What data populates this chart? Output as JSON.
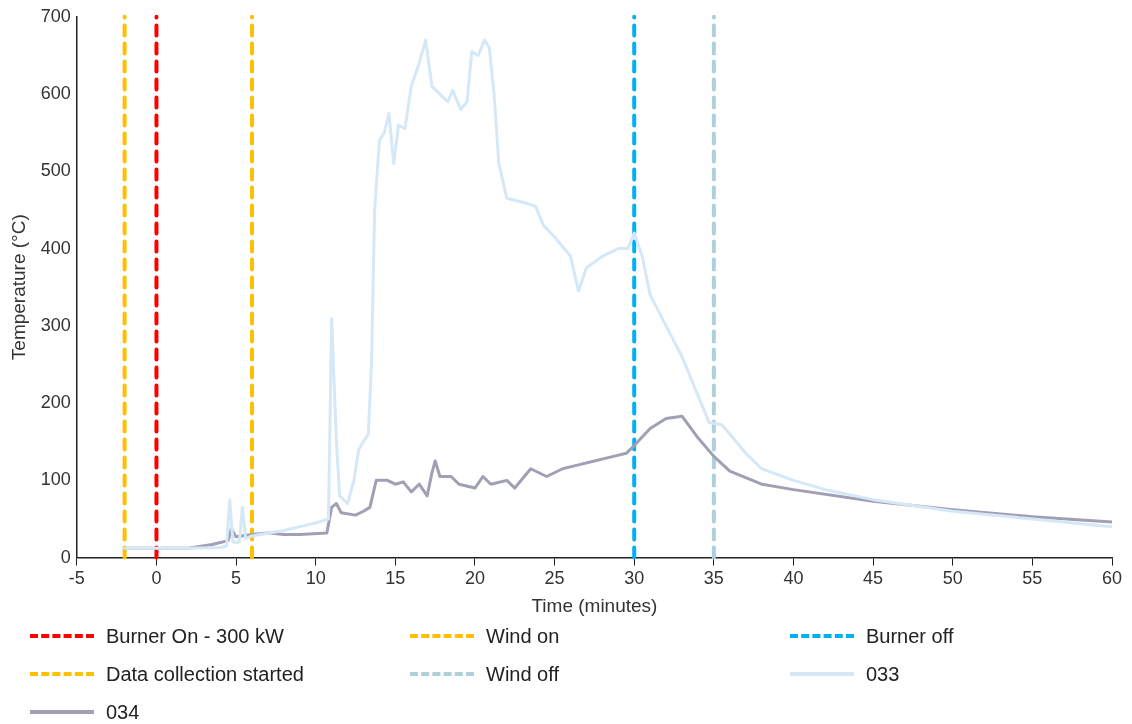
{
  "chart_data": {
    "type": "line",
    "xlabel": "Time (minutes)",
    "ylabel": "Temperature (°C)",
    "xlim": [
      -5,
      60
    ],
    "xticks": [
      -5,
      0,
      5,
      10,
      15,
      20,
      25,
      30,
      35,
      40,
      45,
      50,
      55,
      60
    ],
    "ylim": [
      0,
      700
    ],
    "yticks": [
      0,
      100,
      200,
      300,
      400,
      500,
      600,
      700
    ],
    "grid": false,
    "legend": "bottom",
    "marker": "none",
    "series": [
      {
        "name": "033",
        "color": "#d5e8f7",
        "x": [
          -2,
          0,
          2,
          4,
          4.4,
          4.6,
          4.8,
          5.2,
          5.4,
          5.6,
          6,
          8,
          10,
          10.8,
          11,
          11.3,
          11.5,
          12,
          12.4,
          12.7,
          13,
          13.3,
          13.5,
          13.7,
          14,
          14.3,
          14.6,
          14.9,
          15.2,
          15.6,
          16,
          16.5,
          16.9,
          17.3,
          17.8,
          18.3,
          18.6,
          19.1,
          19.5,
          19.8,
          20.2,
          20.6,
          20.9,
          21.2,
          21.5,
          22,
          23,
          23.8,
          24.3,
          25,
          26,
          26.5,
          27,
          28,
          29,
          29.6,
          30,
          30.5,
          31,
          32,
          33,
          34,
          34.7,
          35.5,
          36,
          37,
          38,
          40,
          42,
          45,
          50,
          55,
          60
        ],
        "values": [
          12,
          12,
          12,
          13,
          15,
          75,
          20,
          20,
          65,
          25,
          28,
          35,
          45,
          50,
          309,
          150,
          80,
          70,
          100,
          140,
          150,
          160,
          250,
          450,
          540,
          550,
          575,
          510,
          560,
          555,
          610,
          640,
          670,
          610,
          600,
          590,
          605,
          580,
          590,
          655,
          650,
          670,
          660,
          600,
          510,
          465,
          460,
          455,
          430,
          415,
          390,
          345,
          375,
          390,
          400,
          400,
          420,
          390,
          340,
          300,
          260,
          210,
          175,
          172,
          160,
          135,
          115,
          100,
          88,
          75,
          60,
          50,
          40
        ]
      },
      {
        "name": "034",
        "color": "#a0a0b4",
        "x": [
          -2,
          0,
          2,
          3.5,
          4.5,
          4.7,
          5,
          6,
          7,
          8,
          9,
          10.7,
          11,
          11.3,
          11.6,
          12.5,
          13,
          13.4,
          13.8,
          14.5,
          15,
          15.5,
          16,
          16.5,
          17,
          17.3,
          17.5,
          17.8,
          18.5,
          19,
          20,
          20.5,
          21,
          22,
          22.5,
          23.5,
          24.5,
          25.5,
          26.5,
          27.5,
          28.5,
          29.5,
          30,
          31,
          32,
          33,
          34,
          35,
          36,
          38,
          40,
          45,
          50,
          55,
          60
        ],
        "values": [
          12,
          12,
          12,
          17,
          22,
          37,
          27,
          30,
          32,
          30,
          30,
          32,
          65,
          70,
          58,
          55,
          60,
          65,
          100,
          100,
          95,
          98,
          85,
          95,
          80,
          110,
          125,
          105,
          105,
          95,
          90,
          105,
          95,
          100,
          90,
          115,
          105,
          115,
          120,
          125,
          130,
          135,
          145,
          167,
          180,
          183,
          155,
          131,
          112,
          95,
          88,
          73,
          62,
          53,
          46
        ]
      }
    ],
    "line_style": "solid",
    "ref_lines": [
      {
        "axis": "x",
        "value": 0,
        "label": "Burner On - 300 kW",
        "color": "#ff0000",
        "line_style": "dashed"
      },
      {
        "axis": "x",
        "value": -2,
        "label": "Wind on",
        "color": "#ffc000",
        "line_style": "dashed"
      },
      {
        "axis": "x",
        "value": 30,
        "label": "Burner off",
        "color": "#00b0f0",
        "line_style": "dashed"
      },
      {
        "axis": "x",
        "value": 6,
        "label": "Data collection started",
        "color": "#ffc000",
        "line_style": "dashed"
      },
      {
        "axis": "x",
        "value": 35,
        "label": "Wind off",
        "color": "#add0db",
        "line_style": "dashed"
      }
    ]
  }
}
